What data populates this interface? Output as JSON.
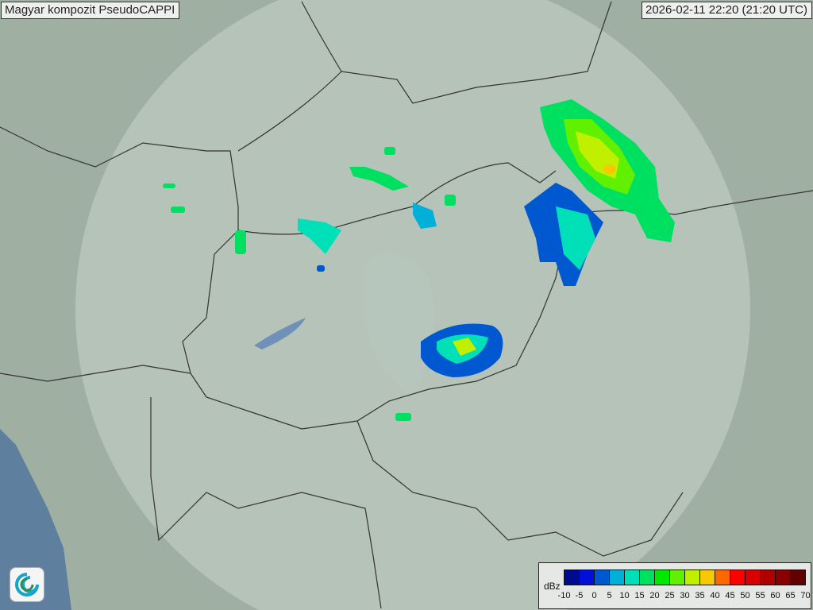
{
  "title": "Magyar kompozit  PseudoCAPPI",
  "timestamp": "2026-02-11 22:20 (21:20 UTC)",
  "legend": {
    "unit": "dBz",
    "ticks": [
      "-10",
      "-5",
      "0",
      "5",
      "10",
      "15",
      "20",
      "25",
      "30",
      "35",
      "40",
      "45",
      "50",
      "55",
      "60",
      "65",
      "70"
    ],
    "colors": [
      "#000a8f",
      "#0010d8",
      "#0058d0",
      "#00b0d8",
      "#00e0b8",
      "#00e060",
      "#00e800",
      "#60f000",
      "#c0f000",
      "#f8c800",
      "#ff6800",
      "#ff0000",
      "#d80000",
      "#b00000",
      "#880000",
      "#600000"
    ]
  },
  "logo_icon": "met-service-swirl-icon"
}
